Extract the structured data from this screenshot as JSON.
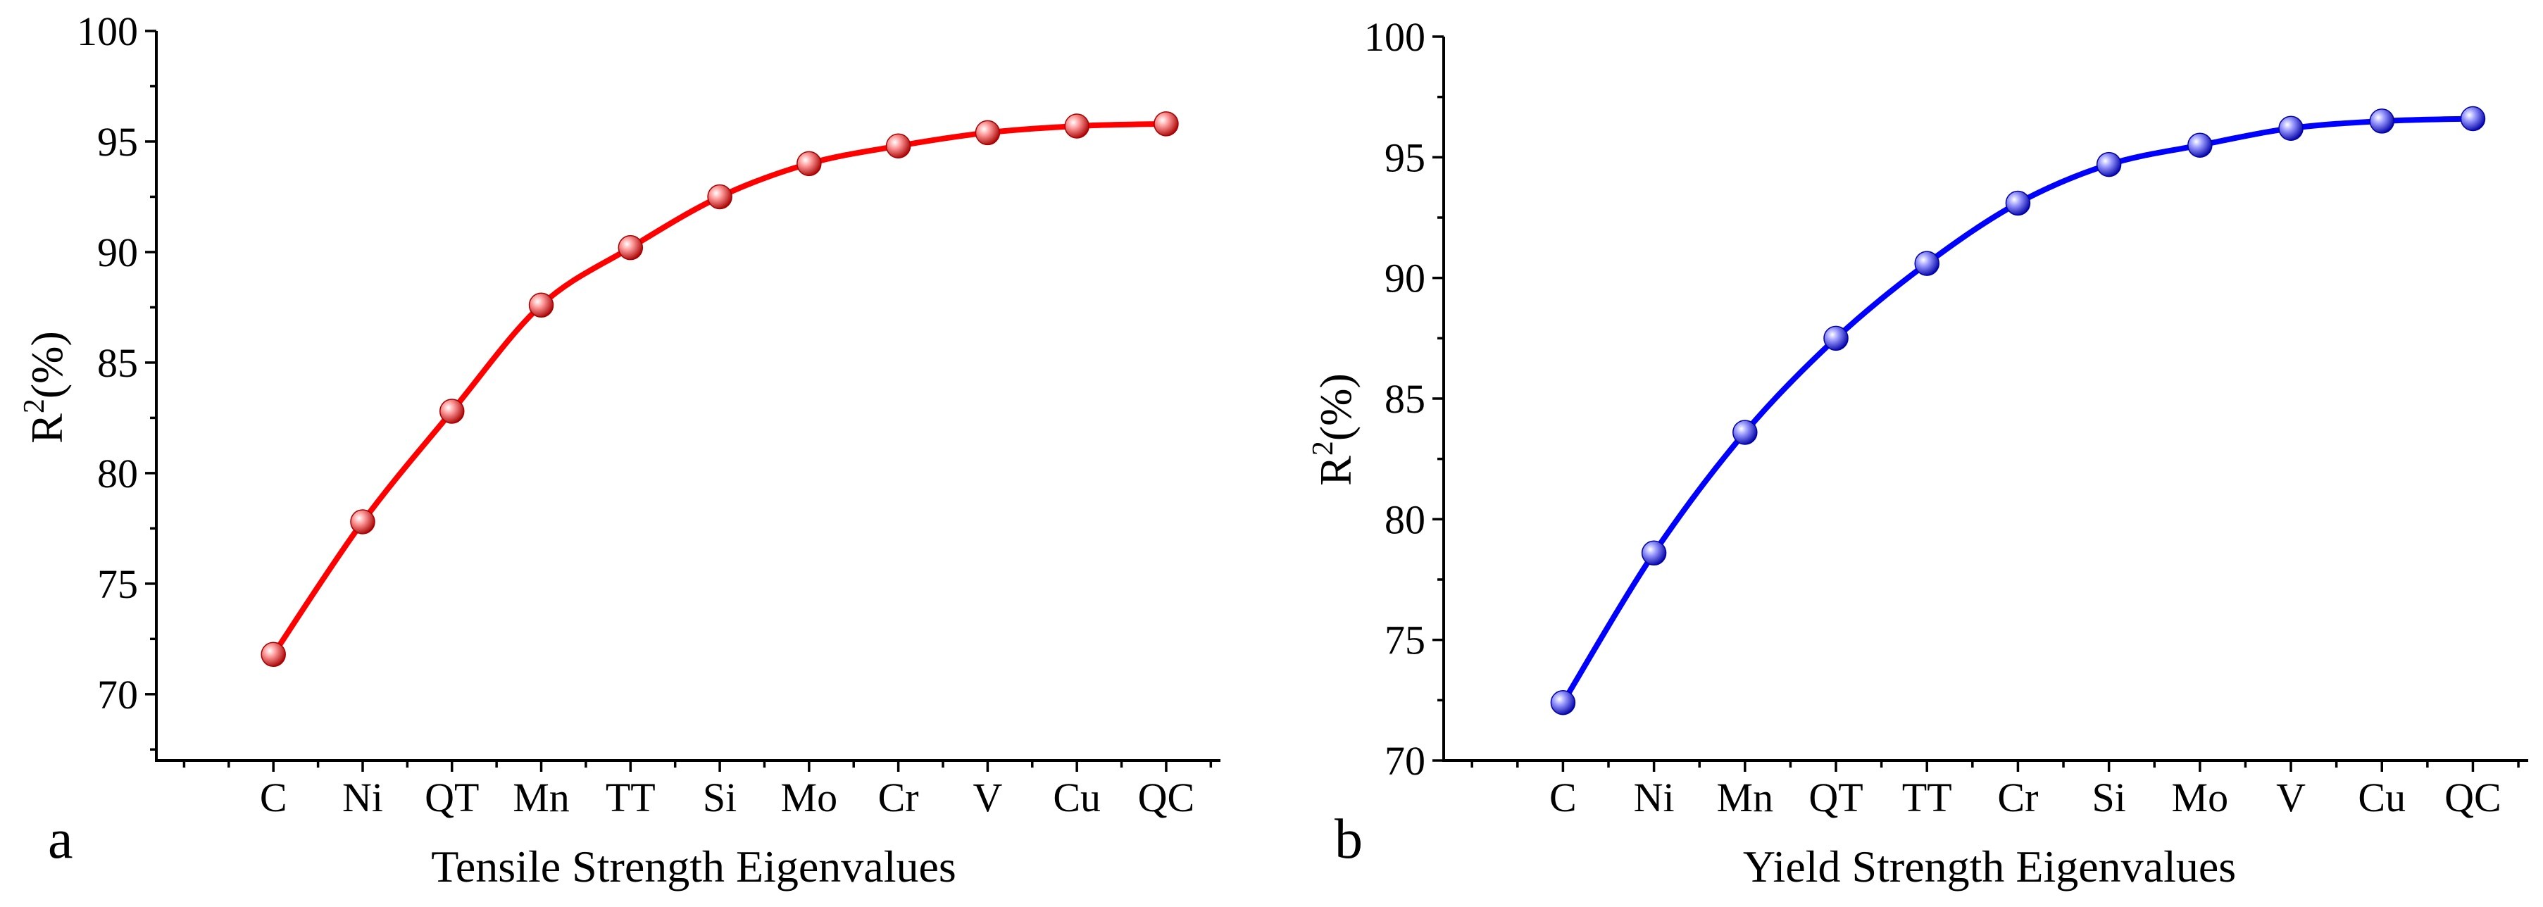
{
  "chart_data": [
    {
      "type": "line",
      "panel_label": "a",
      "xlabel": "Tensile Strength Eigenvalues",
      "ylabel_main": "R",
      "ylabel_sup": "2",
      "ylabel_rest": "(%)",
      "categories": [
        "C",
        "Ni",
        "QT",
        "Mn",
        "TT",
        "Si",
        "Mo",
        "Cr",
        "V",
        "Cu",
        "QC"
      ],
      "values": [
        71.8,
        77.8,
        82.8,
        87.6,
        90.2,
        92.5,
        94.0,
        94.8,
        95.4,
        95.7,
        95.8
      ],
      "ylim": [
        67,
        100
      ],
      "yticks": [
        70,
        75,
        80,
        85,
        90,
        95,
        100
      ],
      "color": "#ff0000",
      "marker_light": "#ff9c9c",
      "marker_dark": "#a80000"
    },
    {
      "type": "line",
      "panel_label": "b",
      "xlabel": "Yield Strength Eigenvalues",
      "ylabel_main": "R",
      "ylabel_sup": "2",
      "ylabel_rest": "(%)",
      "categories": [
        "C",
        "Ni",
        "Mn",
        "QT",
        "TT",
        "Cr",
        "Si",
        "Mo",
        "V",
        "Cu",
        "QC"
      ],
      "values": [
        72.4,
        78.6,
        83.6,
        87.5,
        90.6,
        93.1,
        94.7,
        95.5,
        96.2,
        96.5,
        96.6
      ],
      "ylim": [
        70,
        100
      ],
      "yticks": [
        70,
        75,
        80,
        85,
        90,
        95,
        100
      ],
      "color": "#0000ff",
      "marker_light": "#9c9cff",
      "marker_dark": "#0000a8"
    }
  ]
}
